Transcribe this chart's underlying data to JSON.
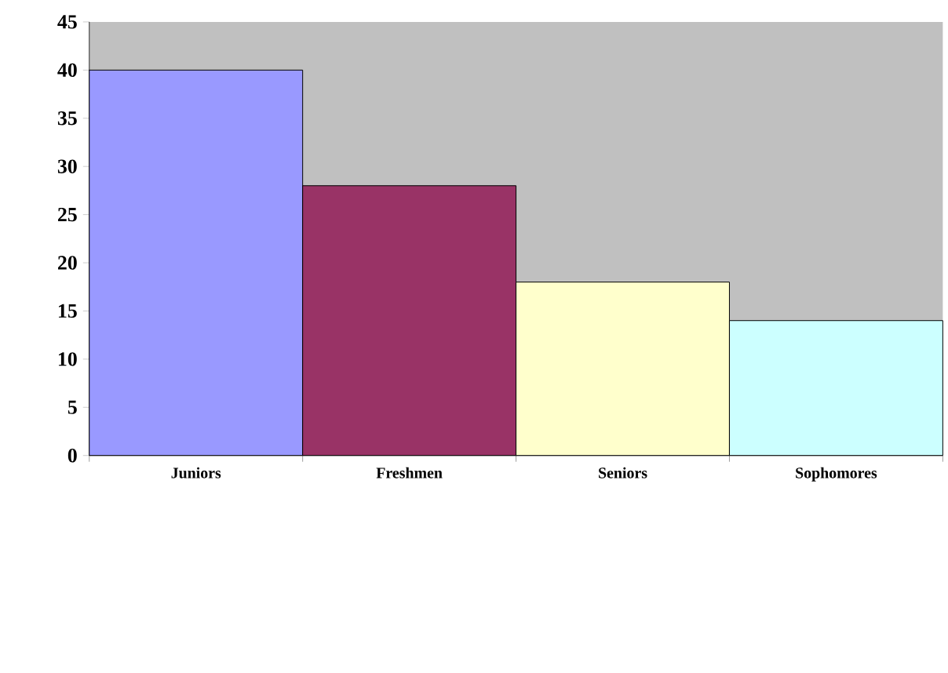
{
  "chart_data": {
    "type": "bar",
    "categories": [
      "Juniors",
      "Freshmen",
      "Seniors",
      "Sophomores"
    ],
    "values": [
      40,
      28,
      18,
      14
    ],
    "colors": [
      "#9999ff",
      "#993366",
      "#ffffcc",
      "#ccffff"
    ],
    "ylim": [
      0,
      45
    ],
    "yticks": [
      0,
      5,
      10,
      15,
      20,
      25,
      30,
      35,
      40,
      45
    ]
  }
}
